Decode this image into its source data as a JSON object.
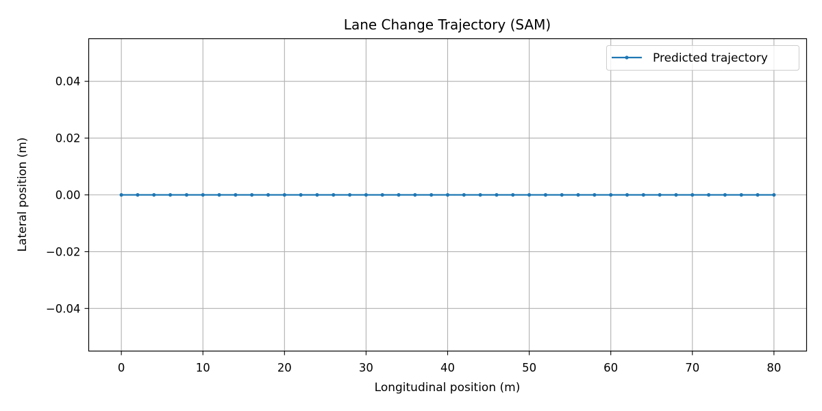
{
  "chart_data": {
    "type": "line",
    "title": "Lane Change Trajectory (SAM)",
    "xlabel": "Longitudinal position (m)",
    "ylabel": "Lateral position (m)",
    "xlim": [
      -4,
      84
    ],
    "ylim": [
      -0.055,
      0.055
    ],
    "xticks": [
      0,
      10,
      20,
      30,
      40,
      50,
      60,
      70,
      80
    ],
    "xtick_labels": [
      "0",
      "10",
      "20",
      "30",
      "40",
      "50",
      "60",
      "70",
      "80"
    ],
    "yticks": [
      0.04,
      0.02,
      0.0,
      -0.02,
      -0.04
    ],
    "ytick_labels": [
      "0.04",
      "0.02",
      "0.00",
      "−0.02",
      "−0.04"
    ],
    "grid": true,
    "legend_position": "top-right",
    "series": [
      {
        "name": "Predicted trajectory",
        "color": "#1f77b4",
        "marker": "dot",
        "x": [
          0,
          2,
          4,
          6,
          8,
          10,
          12,
          14,
          16,
          18,
          20,
          22,
          24,
          26,
          28,
          30,
          32,
          34,
          36,
          38,
          40,
          42,
          44,
          46,
          48,
          50,
          52,
          54,
          56,
          58,
          60,
          62,
          64,
          66,
          68,
          70,
          72,
          74,
          76,
          78,
          80
        ],
        "y": [
          0,
          0,
          0,
          0,
          0,
          0,
          0,
          0,
          0,
          0,
          0,
          0,
          0,
          0,
          0,
          0,
          0,
          0,
          0,
          0,
          0,
          0,
          0,
          0,
          0,
          0,
          0,
          0,
          0,
          0,
          0,
          0,
          0,
          0,
          0,
          0,
          0,
          0,
          0,
          0,
          0
        ]
      }
    ]
  }
}
